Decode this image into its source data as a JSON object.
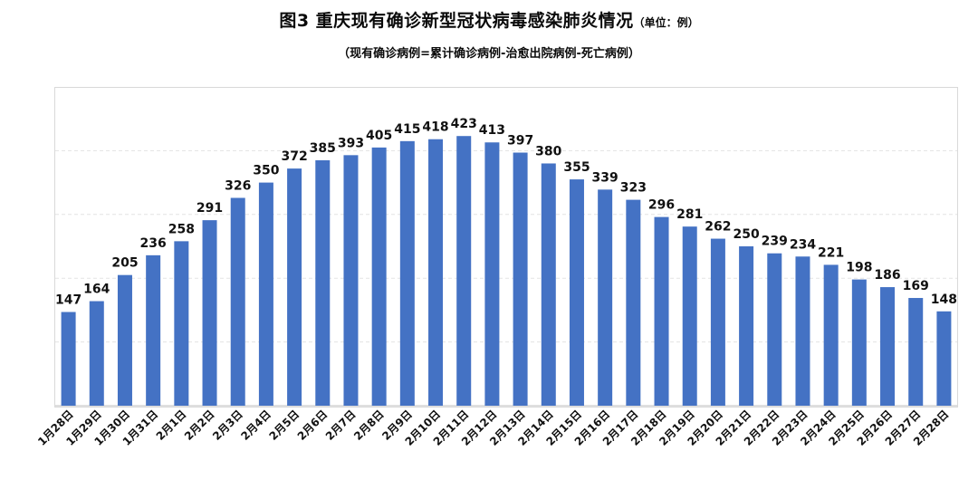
{
  "title": {
    "main": "图3    重庆现有确诊新型冠状病毒感染肺炎情况",
    "unit": "（单位：例）"
  },
  "subtitle": "（现有确诊病例=累计确诊病例-治愈出院病例-死亡病例）",
  "chart_data": {
    "type": "bar",
    "title": "图3    重庆现有确诊新型冠状病毒感染肺炎情况",
    "subtitle": "（现有确诊病例=累计确诊病例-治愈出院病例-死亡病例）",
    "unit": "（单位：例）",
    "categories": [
      "1月28日",
      "1月29日",
      "1月30日",
      "1月31日",
      "2月1日",
      "2月2日",
      "2月3日",
      "2月4日",
      "2月5日",
      "2月6日",
      "2月7日",
      "2月8日",
      "2月9日",
      "2月10日",
      "2月11日",
      "2月12日",
      "2月13日",
      "2月14日",
      "2月15日",
      "2月16日",
      "2月17日",
      "2月18日",
      "2月19日",
      "2月20日",
      "2月21日",
      "2月22日",
      "2月23日",
      "2月24日",
      "2月25日",
      "2月26日",
      "2月27日",
      "2月28日"
    ],
    "values": [
      147,
      164,
      205,
      236,
      258,
      291,
      326,
      350,
      372,
      385,
      393,
      405,
      415,
      418,
      423,
      413,
      397,
      380,
      355,
      339,
      323,
      296,
      281,
      262,
      250,
      239,
      234,
      221,
      198,
      186,
      169,
      148
    ],
    "ylim": [
      0,
      500
    ],
    "grid": true,
    "legend": "none",
    "bar_color": "#4472C4",
    "xlabel": "",
    "ylabel": ""
  }
}
